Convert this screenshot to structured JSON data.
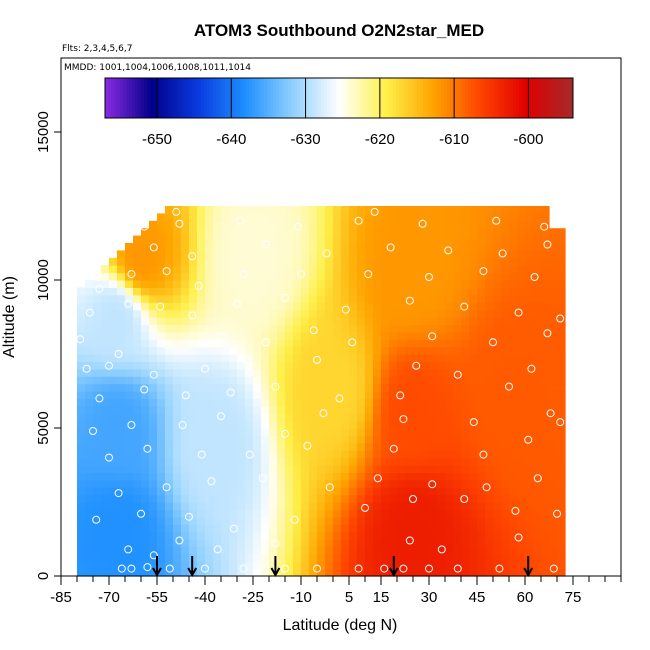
{
  "chart_data": {
    "type": "heatmap",
    "title": "ATOM3 Southbound O2N2star_MED",
    "flights_label": "Flts: 2,3,4,5,6,7",
    "dates_label": "MMDD: 1001,1004,1006,1008,1011,1014",
    "xlabel": "Latitude (deg N)",
    "ylabel": "Altitude (m)",
    "xlim": [
      -85,
      90
    ],
    "ylim": [
      0,
      17500
    ],
    "x_ticks": [
      -85,
      -70,
      -55,
      -40,
      -25,
      -10,
      5,
      15,
      30,
      45,
      60,
      75
    ],
    "y_ticks": [
      0,
      5000,
      10000,
      15000
    ],
    "grid": false,
    "colorbar": {
      "range": [
        -657,
        -594
      ],
      "ticks": [
        -650,
        -640,
        -630,
        -620,
        -610,
        -600
      ],
      "colors": [
        "#8b2be2",
        "#00008b",
        "#0a3be0",
        "#1e90ff",
        "#8fd0ff",
        "#ffffff",
        "#fff04a",
        "#ffa500",
        "#ff4500",
        "#e00000",
        "#a52a2a"
      ]
    },
    "regions": [
      {
        "lat_range": [
          -80,
          -55
        ],
        "alt_range": [
          0,
          3000
        ],
        "value": -638
      },
      {
        "lat_range": [
          -80,
          -55
        ],
        "alt_range": [
          3000,
          7000
        ],
        "value": -636
      },
      {
        "lat_range": [
          -80,
          -55
        ],
        "alt_range": [
          7000,
          10500
        ],
        "value": -629
      },
      {
        "lat_range": [
          -65,
          -55
        ],
        "alt_range": [
          9000,
          12500
        ],
        "value": -612
      },
      {
        "lat_range": [
          -55,
          -20
        ],
        "alt_range": [
          0,
          9000
        ],
        "value": -629
      },
      {
        "lat_range": [
          -40,
          -10
        ],
        "alt_range": [
          9000,
          12500
        ],
        "value": -624
      },
      {
        "lat_range": [
          -10,
          10
        ],
        "alt_range": [
          0,
          12500
        ],
        "value": -617
      },
      {
        "lat_range": [
          10,
          40
        ],
        "alt_range": [
          0,
          3000
        ],
        "value": -603
      },
      {
        "lat_range": [
          10,
          40
        ],
        "alt_range": [
          3000,
          8000
        ],
        "value": -607
      },
      {
        "lat_range": [
          10,
          40
        ],
        "alt_range": [
          8000,
          12500
        ],
        "value": -612
      },
      {
        "lat_range": [
          40,
          72
        ],
        "alt_range": [
          0,
          12500
        ],
        "value": -608
      }
    ],
    "profile_latitudes": [
      -55,
      -44,
      -18,
      19,
      61
    ],
    "observations": [
      [
        -66,
        250
      ],
      [
        -63,
        250
      ],
      [
        -58,
        300
      ],
      [
        -51,
        250
      ],
      [
        -40,
        250
      ],
      [
        -28,
        250
      ],
      [
        -15,
        250
      ],
      [
        -5,
        250
      ],
      [
        8,
        250
      ],
      [
        16,
        250
      ],
      [
        22,
        250
      ],
      [
        30,
        250
      ],
      [
        39,
        250
      ],
      [
        52,
        250
      ],
      [
        69,
        250
      ],
      [
        -64,
        900
      ],
      [
        -56,
        700
      ],
      [
        -48,
        1200
      ],
      [
        -36,
        900
      ],
      [
        -18,
        1100
      ],
      [
        24,
        1200
      ],
      [
        34,
        900
      ],
      [
        58,
        1300
      ],
      [
        -74,
        1900
      ],
      [
        -60,
        2100
      ],
      [
        -45,
        2000
      ],
      [
        -31,
        1600
      ],
      [
        -12,
        1900
      ],
      [
        10,
        2300
      ],
      [
        25,
        2600
      ],
      [
        41,
        2600
      ],
      [
        57,
        2200
      ],
      [
        70,
        2100
      ],
      [
        -67,
        2800
      ],
      [
        -52,
        3000
      ],
      [
        -38,
        3200
      ],
      [
        -22,
        3300
      ],
      [
        -1,
        3000
      ],
      [
        14,
        3300
      ],
      [
        31,
        3100
      ],
      [
        48,
        3000
      ],
      [
        64,
        3300
      ],
      [
        -70,
        4000
      ],
      [
        -58,
        4300
      ],
      [
        -41,
        4100
      ],
      [
        -26,
        4100
      ],
      [
        -8,
        4400
      ],
      [
        19,
        4300
      ],
      [
        47,
        4100
      ],
      [
        61,
        4600
      ],
      [
        -75,
        4900
      ],
      [
        -63,
        5100
      ],
      [
        -47,
        5100
      ],
      [
        -35,
        5400
      ],
      [
        -15,
        4800
      ],
      [
        -3,
        5500
      ],
      [
        22,
        5300
      ],
      [
        44,
        5200
      ],
      [
        68,
        5500
      ],
      [
        71,
        5200
      ],
      [
        -73,
        6000
      ],
      [
        -59,
        6300
      ],
      [
        -46,
        6100
      ],
      [
        -32,
        6200
      ],
      [
        -18,
        6400
      ],
      [
        2,
        6000
      ],
      [
        21,
        6100
      ],
      [
        55,
        6400
      ],
      [
        -77,
        7000
      ],
      [
        -70,
        7100
      ],
      [
        -56,
        6800
      ],
      [
        -40,
        7000
      ],
      [
        -27,
        7300
      ],
      [
        -5,
        7300
      ],
      [
        26,
        7100
      ],
      [
        39,
        6800
      ],
      [
        62,
        7000
      ],
      [
        -79,
        8000
      ],
      [
        -67,
        7500
      ],
      [
        -52,
        7800
      ],
      [
        -35,
        8100
      ],
      [
        -21,
        7900
      ],
      [
        -6,
        8300
      ],
      [
        6,
        7900
      ],
      [
        31,
        8100
      ],
      [
        50,
        7900
      ],
      [
        67,
        8200
      ],
      [
        -76,
        8900
      ],
      [
        -64,
        9200
      ],
      [
        -54,
        9100
      ],
      [
        -44,
        8800
      ],
      [
        -30,
        9200
      ],
      [
        -15,
        9400
      ],
      [
        4,
        9000
      ],
      [
        24,
        9300
      ],
      [
        41,
        9100
      ],
      [
        58,
        8900
      ],
      [
        71,
        8700
      ],
      [
        -80,
        9900
      ],
      [
        -73,
        9700
      ],
      [
        -63,
        10200
      ],
      [
        -52,
        10300
      ],
      [
        -42,
        9800
      ],
      [
        -28,
        10200
      ],
      [
        -10,
        10200
      ],
      [
        11,
        10200
      ],
      [
        30,
        10100
      ],
      [
        47,
        10300
      ],
      [
        63,
        10100
      ],
      [
        -72,
        10800
      ],
      [
        -56,
        11100
      ],
      [
        -44,
        10800
      ],
      [
        -21,
        11200
      ],
      [
        -2,
        10900
      ],
      [
        18,
        11100
      ],
      [
        36,
        11000
      ],
      [
        53,
        10900
      ],
      [
        67,
        11200
      ],
      [
        -59,
        11800
      ],
      [
        -48,
        11900
      ],
      [
        -29,
        12000
      ],
      [
        -11,
        11800
      ],
      [
        8,
        12000
      ],
      [
        28,
        11900
      ],
      [
        51,
        12000
      ],
      [
        66,
        11800
      ],
      [
        -49,
        12300
      ],
      [
        13,
        12300
      ]
    ]
  }
}
